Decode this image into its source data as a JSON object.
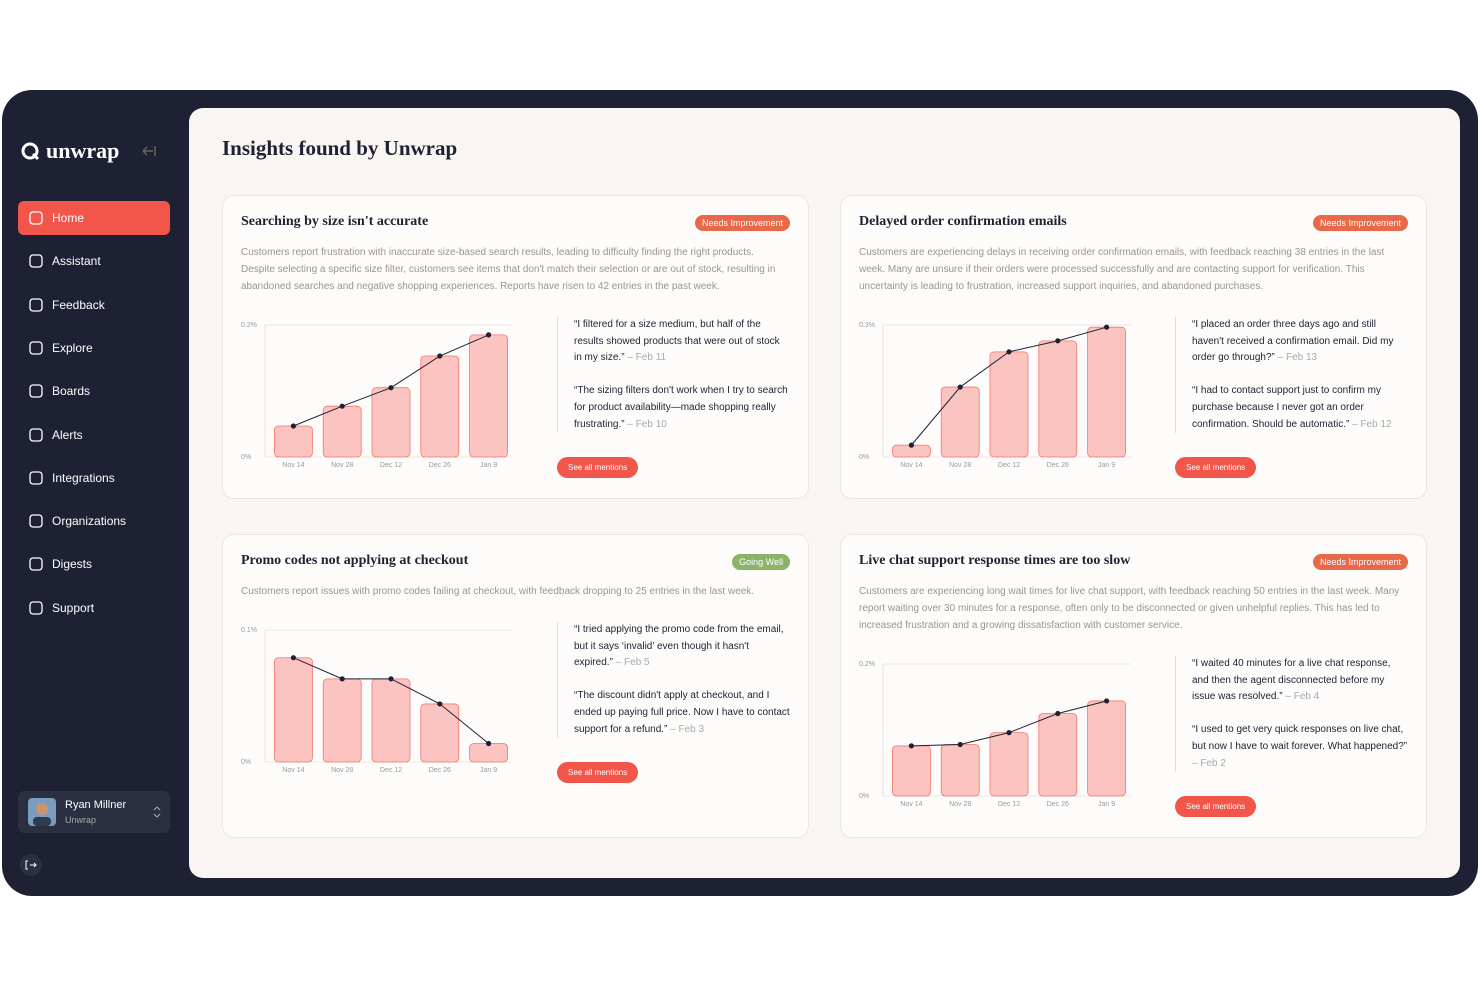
{
  "sidebar": {
    "logo": "unwrap",
    "nav": [
      "Home",
      "Assistant",
      "Feedback",
      "Explore",
      "Boards",
      "Alerts",
      "Integrations",
      "Organizations",
      "Digests",
      "Support"
    ],
    "active": 0,
    "user": {
      "name": "Ryan Millner",
      "org": "Unwrap"
    }
  },
  "main": {
    "title": "Insights found by Unwrap"
  },
  "cards": [
    {
      "title": "Searching by size isn't accurate",
      "status": "Needs Improvement",
      "status_color": "#e8694a",
      "description": "Customers report frustration with inaccurate size-based search results, leading to difficulty finding the right products. Despite selecting a specific size filter, customers see items that don't match their selection or are out of stock, resulting in abandoned searches and negative shopping experiences. Reports have risen to 42 entries in the past week.",
      "quotes": [
        {
          "text": "“I filtered for a size medium, but half of the results showed products that were out of stock in my size.”",
          "date": "– Feb 11"
        },
        {
          "text": "“The sizing filters don't work when I try to search for product availability—made shopping really frustrating.”",
          "date": "– Feb 10"
        }
      ],
      "button": "See all mentions",
      "chart_data": {
        "type": "bar",
        "line": true,
        "categories": [
          "Nov 14",
          "Nov 28",
          "Dec 12",
          "Dec 26",
          "Jan 9"
        ],
        "values": [
          0.047,
          0.077,
          0.105,
          0.153,
          0.185
        ],
        "color": "#fbc4c0",
        "ylim": [
          0,
          0.2
        ],
        "yticks": [
          {
            "value": 0,
            "label": "0%"
          },
          {
            "value": 0.2,
            "label": "0.2%"
          }
        ],
        "grid": true
      }
    },
    {
      "title": "Delayed order confirmation emails",
      "status": "Needs Improvement",
      "status_color": "#e8694a",
      "description": "Customers are experiencing delays in receiving order confirmation emails, with feedback reaching 38 entries in the last week. Many are unsure if their orders were processed successfully and are contacting support for verification. This uncertainty is leading to frustration, increased support inquiries, and abandoned purchases.",
      "quotes": [
        {
          "text": "“I placed an order three days ago and still haven't received a confirmation email. Did my order go through?”",
          "date": "– Feb 13"
        },
        {
          "text": "“I had to contact support just to confirm my purchase because I never got an order confirmation. Should be automatic.”",
          "date": "– Feb 12"
        }
      ],
      "button": "See all mentions",
      "chart_data": {
        "type": "bar",
        "line": true,
        "categories": [
          "Nov 14",
          "Nov 28",
          "Dec 12",
          "Dec 26",
          "Jan 9"
        ],
        "values": [
          0.027,
          0.159,
          0.239,
          0.264,
          0.295
        ],
        "color": "#fbc4c0",
        "ylim": [
          0,
          0.3
        ],
        "yticks": [
          {
            "value": 0,
            "label": "0%"
          },
          {
            "value": 0.3,
            "label": "0.3%"
          }
        ],
        "grid": true
      }
    },
    {
      "title": "Promo codes not applying at checkout",
      "status": "Going Well",
      "status_color": "#8bb36a",
      "description": "Customers report issues with promo codes failing at checkout, with feedback dropping to 25 entries in the last week.",
      "quotes": [
        {
          "text": "“I tried applying the promo code from the email, but it says ‘invalid’ even though it hasn't expired.”",
          "date": "– Feb 5"
        },
        {
          "text": "“The discount didn't apply at checkout, and I ended up paying full price. Now I have to contact support for a refund.”",
          "date": "– Feb 3"
        }
      ],
      "button": "See all mentions",
      "chart_data": {
        "type": "bar",
        "line": true,
        "categories": [
          "Nov 14",
          "Nov 28",
          "Dec 12",
          "Dec 26",
          "Jan 9"
        ],
        "values": [
          0.079,
          0.063,
          0.063,
          0.044,
          0.014
        ],
        "color": "#fbc4c0",
        "ylim": [
          0,
          0.1
        ],
        "yticks": [
          {
            "value": 0,
            "label": "0%"
          },
          {
            "value": 0.1,
            "label": "0.1%"
          }
        ],
        "grid": true
      }
    },
    {
      "title": "Live chat support response times are too slow",
      "status": "Needs Improvement",
      "status_color": "#e8694a",
      "description": "Customers are experiencing long wait times for live chat support, with feedback reaching 50 entries in the last week. Many report waiting over 30 minutes for a response, often only to be disconnected or given unhelpful replies. This has led to increased frustration and a growing dissatisfaction with customer service.",
      "quotes": [
        {
          "text": "“I waited 40 minutes for a live chat response, and then the agent disconnected before my issue was resolved.”",
          "date": "– Feb 4"
        },
        {
          "text": "“I used to get very quick responses on live chat, but now I have to wait forever. What happened?”",
          "date": "– Feb 2"
        }
      ],
      "button": "See all mentions",
      "chart_data": {
        "type": "bar",
        "line": true,
        "categories": [
          "Nov 14",
          "Nov 28",
          "Dec 12",
          "Dec 26",
          "Jan 9"
        ],
        "values": [
          0.076,
          0.078,
          0.096,
          0.125,
          0.144
        ],
        "color": "#fbc4c0",
        "ylim": [
          0,
          0.2
        ],
        "yticks": [
          {
            "value": 0,
            "label": "0%"
          },
          {
            "value": 0.2,
            "label": "0.2%"
          }
        ],
        "grid": true
      }
    }
  ]
}
